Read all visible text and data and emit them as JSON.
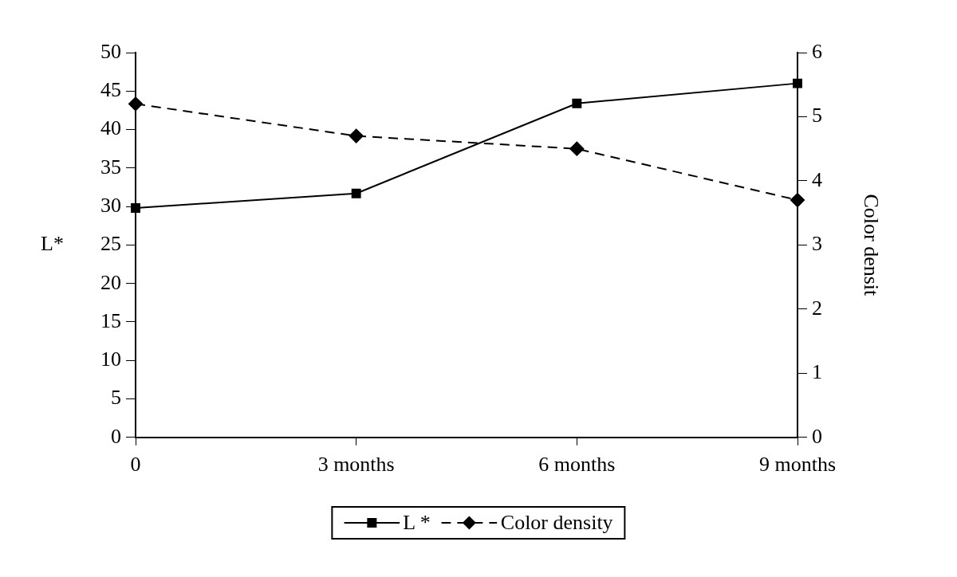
{
  "chart_data": {
    "type": "line",
    "ylabel": "L*",
    "y2label": "Color densit",
    "categories": [
      "0",
      "3 months",
      "6 months",
      "9 months"
    ],
    "series": [
      {
        "name": "L *",
        "color": "#000000",
        "values": [
          29.8,
          31.7,
          43.4,
          46.0
        ],
        "marker": "square",
        "line_style": "solid"
      },
      {
        "name": "Color density",
        "color": "#000000",
        "values": [
          5.2,
          4.7,
          4.5,
          3.7
        ],
        "axis": "y2",
        "marker": "diamond",
        "line_style": "dashed"
      }
    ],
    "ylim": [
      0,
      50
    ],
    "yticks": [
      0,
      5,
      10,
      15,
      20,
      25,
      30,
      35,
      40,
      45,
      50
    ],
    "y2lim": [
      0,
      6
    ],
    "y2ticks": [
      0,
      1,
      2,
      3,
      4,
      5,
      6
    ],
    "grid": false,
    "legend": "bottom"
  }
}
